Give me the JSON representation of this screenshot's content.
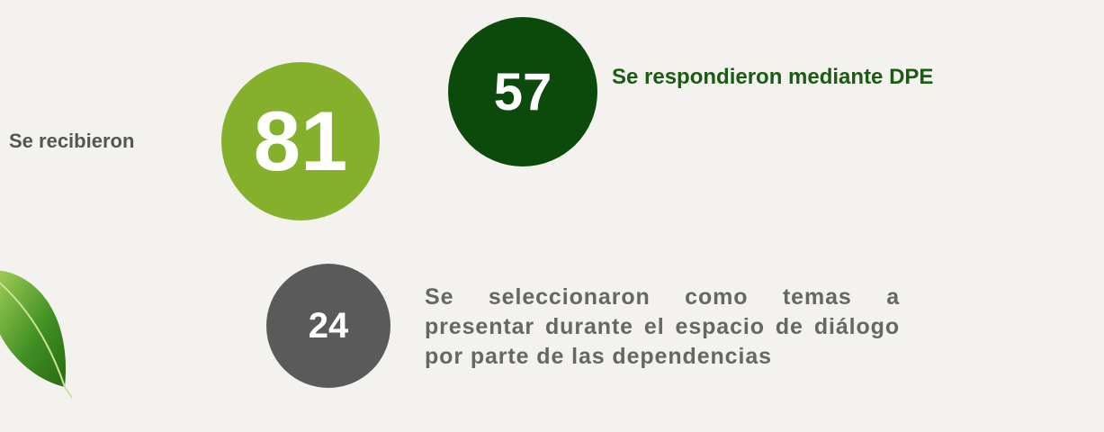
{
  "items": [
    {
      "value": 81,
      "label": "Se recibieron"
    },
    {
      "value": 57,
      "label": "Se respondieron mediante DPE"
    },
    {
      "value": 24,
      "label": "Se seleccionaron como temas a presentar durante el espacio de diálogo por parte de las dependencias"
    }
  ]
}
